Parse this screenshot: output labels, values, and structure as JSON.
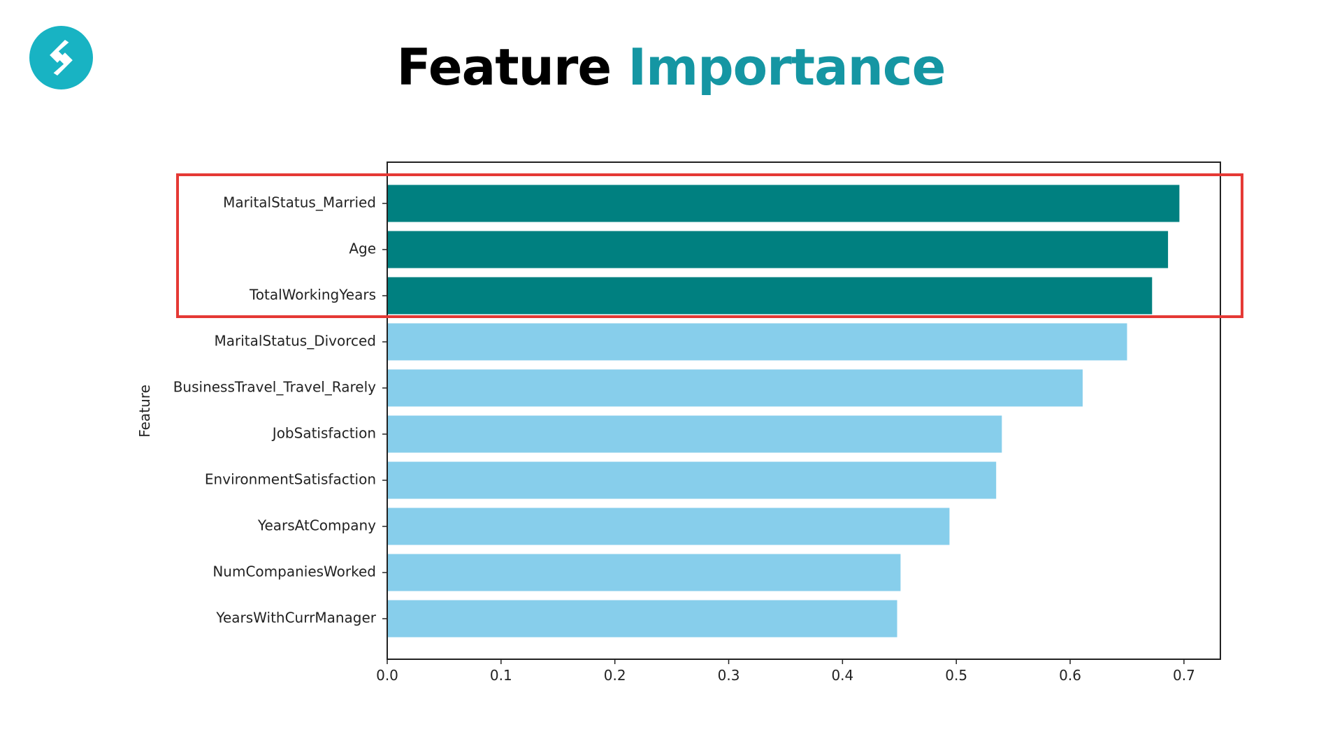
{
  "title": {
    "part1": "Feature",
    "part2": "Importance"
  },
  "colors": {
    "top_feature_bar": "#008080",
    "other_feature_bar": "#87ceeb",
    "title_accent": "#1596a3",
    "logo_color": "#18b3c3",
    "highlight_border": "#e53935"
  },
  "icons": {
    "logo": "brand-logo-icon"
  },
  "chart_data": {
    "type": "bar",
    "orientation": "horizontal",
    "categories": [
      "MaritalStatus_Married",
      "Age",
      "TotalWorkingYears",
      "MaritalStatus_Divorced",
      "BusinessTravel_Travel_Rarely",
      "JobSatisfaction",
      "EnvironmentSatisfaction",
      "YearsAtCompany",
      "NumCompaniesWorked",
      "YearsWithCurrManager"
    ],
    "values": [
      0.696,
      0.686,
      0.672,
      0.65,
      0.611,
      0.54,
      0.535,
      0.494,
      0.451,
      0.448
    ],
    "highlighted_top_n": 3,
    "xlabel": "",
    "ylabel": "Feature",
    "xlim": [
      0.0,
      0.732
    ],
    "xticks": [
      "0.0",
      "0.1",
      "0.2",
      "0.3",
      "0.4",
      "0.5",
      "0.6",
      "0.7"
    ],
    "grid": false,
    "legend": "none"
  }
}
